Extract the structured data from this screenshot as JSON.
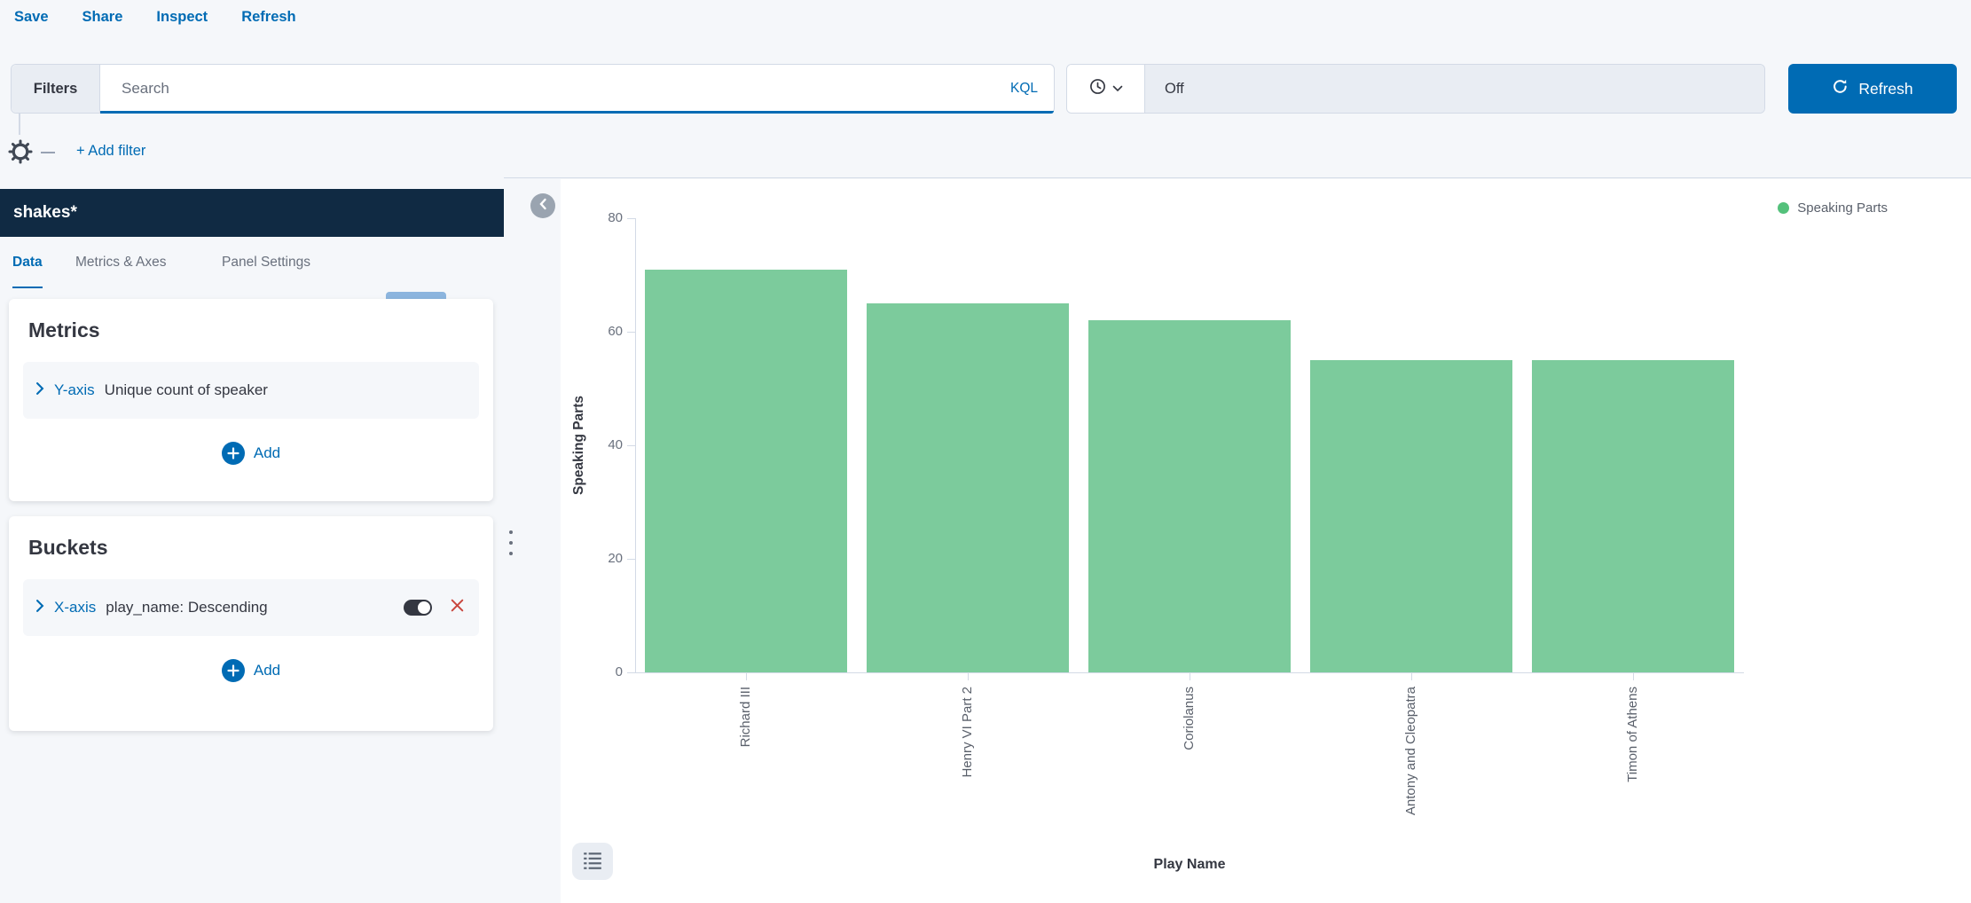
{
  "toolbar": {
    "links": [
      {
        "label": "Save"
      },
      {
        "label": "Share"
      },
      {
        "label": "Inspect"
      },
      {
        "label": "Refresh"
      }
    ]
  },
  "query_bar": {
    "filters_label": "Filters",
    "search_placeholder": "Search",
    "search_value": "",
    "kql_label": "KQL",
    "time_display": "Off",
    "refresh_label": "Refresh",
    "add_filter_label": "+ Add filter"
  },
  "sidebar": {
    "index_pattern": "shakes*",
    "tabs": [
      {
        "label": "Data",
        "active": true
      },
      {
        "label": "Metrics & Axes",
        "active": false
      },
      {
        "label": "Panel Settings",
        "active": false
      }
    ],
    "metrics": {
      "title": "Metrics",
      "rows": [
        {
          "axis": "Y-axis",
          "label": "Unique count of speaker"
        }
      ],
      "add_label": "Add"
    },
    "buckets": {
      "title": "Buckets",
      "rows": [
        {
          "axis": "X-axis",
          "label": "play_name: Descending",
          "toggle_on": true
        }
      ],
      "add_label": "Add"
    }
  },
  "chart_data": {
    "type": "bar",
    "title": "",
    "categories": [
      "Richard III",
      "Henry VI Part 2",
      "Coriolanus",
      "Antony and Cleopatra",
      "Timon of Athens"
    ],
    "series": [
      {
        "name": "Speaking Parts",
        "values": [
          71,
          65,
          62,
          55,
          55
        ]
      }
    ],
    "xlabel": "Play Name",
    "ylabel": "Speaking Parts",
    "ylim": [
      0,
      80
    ],
    "yticks": [
      0,
      20,
      40,
      60,
      80
    ],
    "grid": false,
    "legend_position": "top-right",
    "bar_color": "#7CCB9C"
  },
  "icons": {
    "gear": "cog wheel",
    "clock": "clock face",
    "chevron-down": "⌄",
    "chevron-left": "‹",
    "chevron-right": "›",
    "play": "▷",
    "close": "✕",
    "refresh": "circular arrow",
    "plus": "+",
    "delete": "✕",
    "drag-handle": "⋮",
    "values-list": "bulleted list"
  },
  "colors": {
    "accent_blue": "#006BB4",
    "header_navy": "#102A43",
    "bar_green": "#7CCB9C",
    "legend_dot_green": "#54C17B",
    "danger_red": "#C9473F",
    "text_dark": "#343741",
    "text_gray": "#69707D",
    "border": "#D3DAE6",
    "bg_light": "#F5F7FA",
    "control_bg": "#E9EDF3",
    "play_button_bg": "#8CB5DE"
  }
}
